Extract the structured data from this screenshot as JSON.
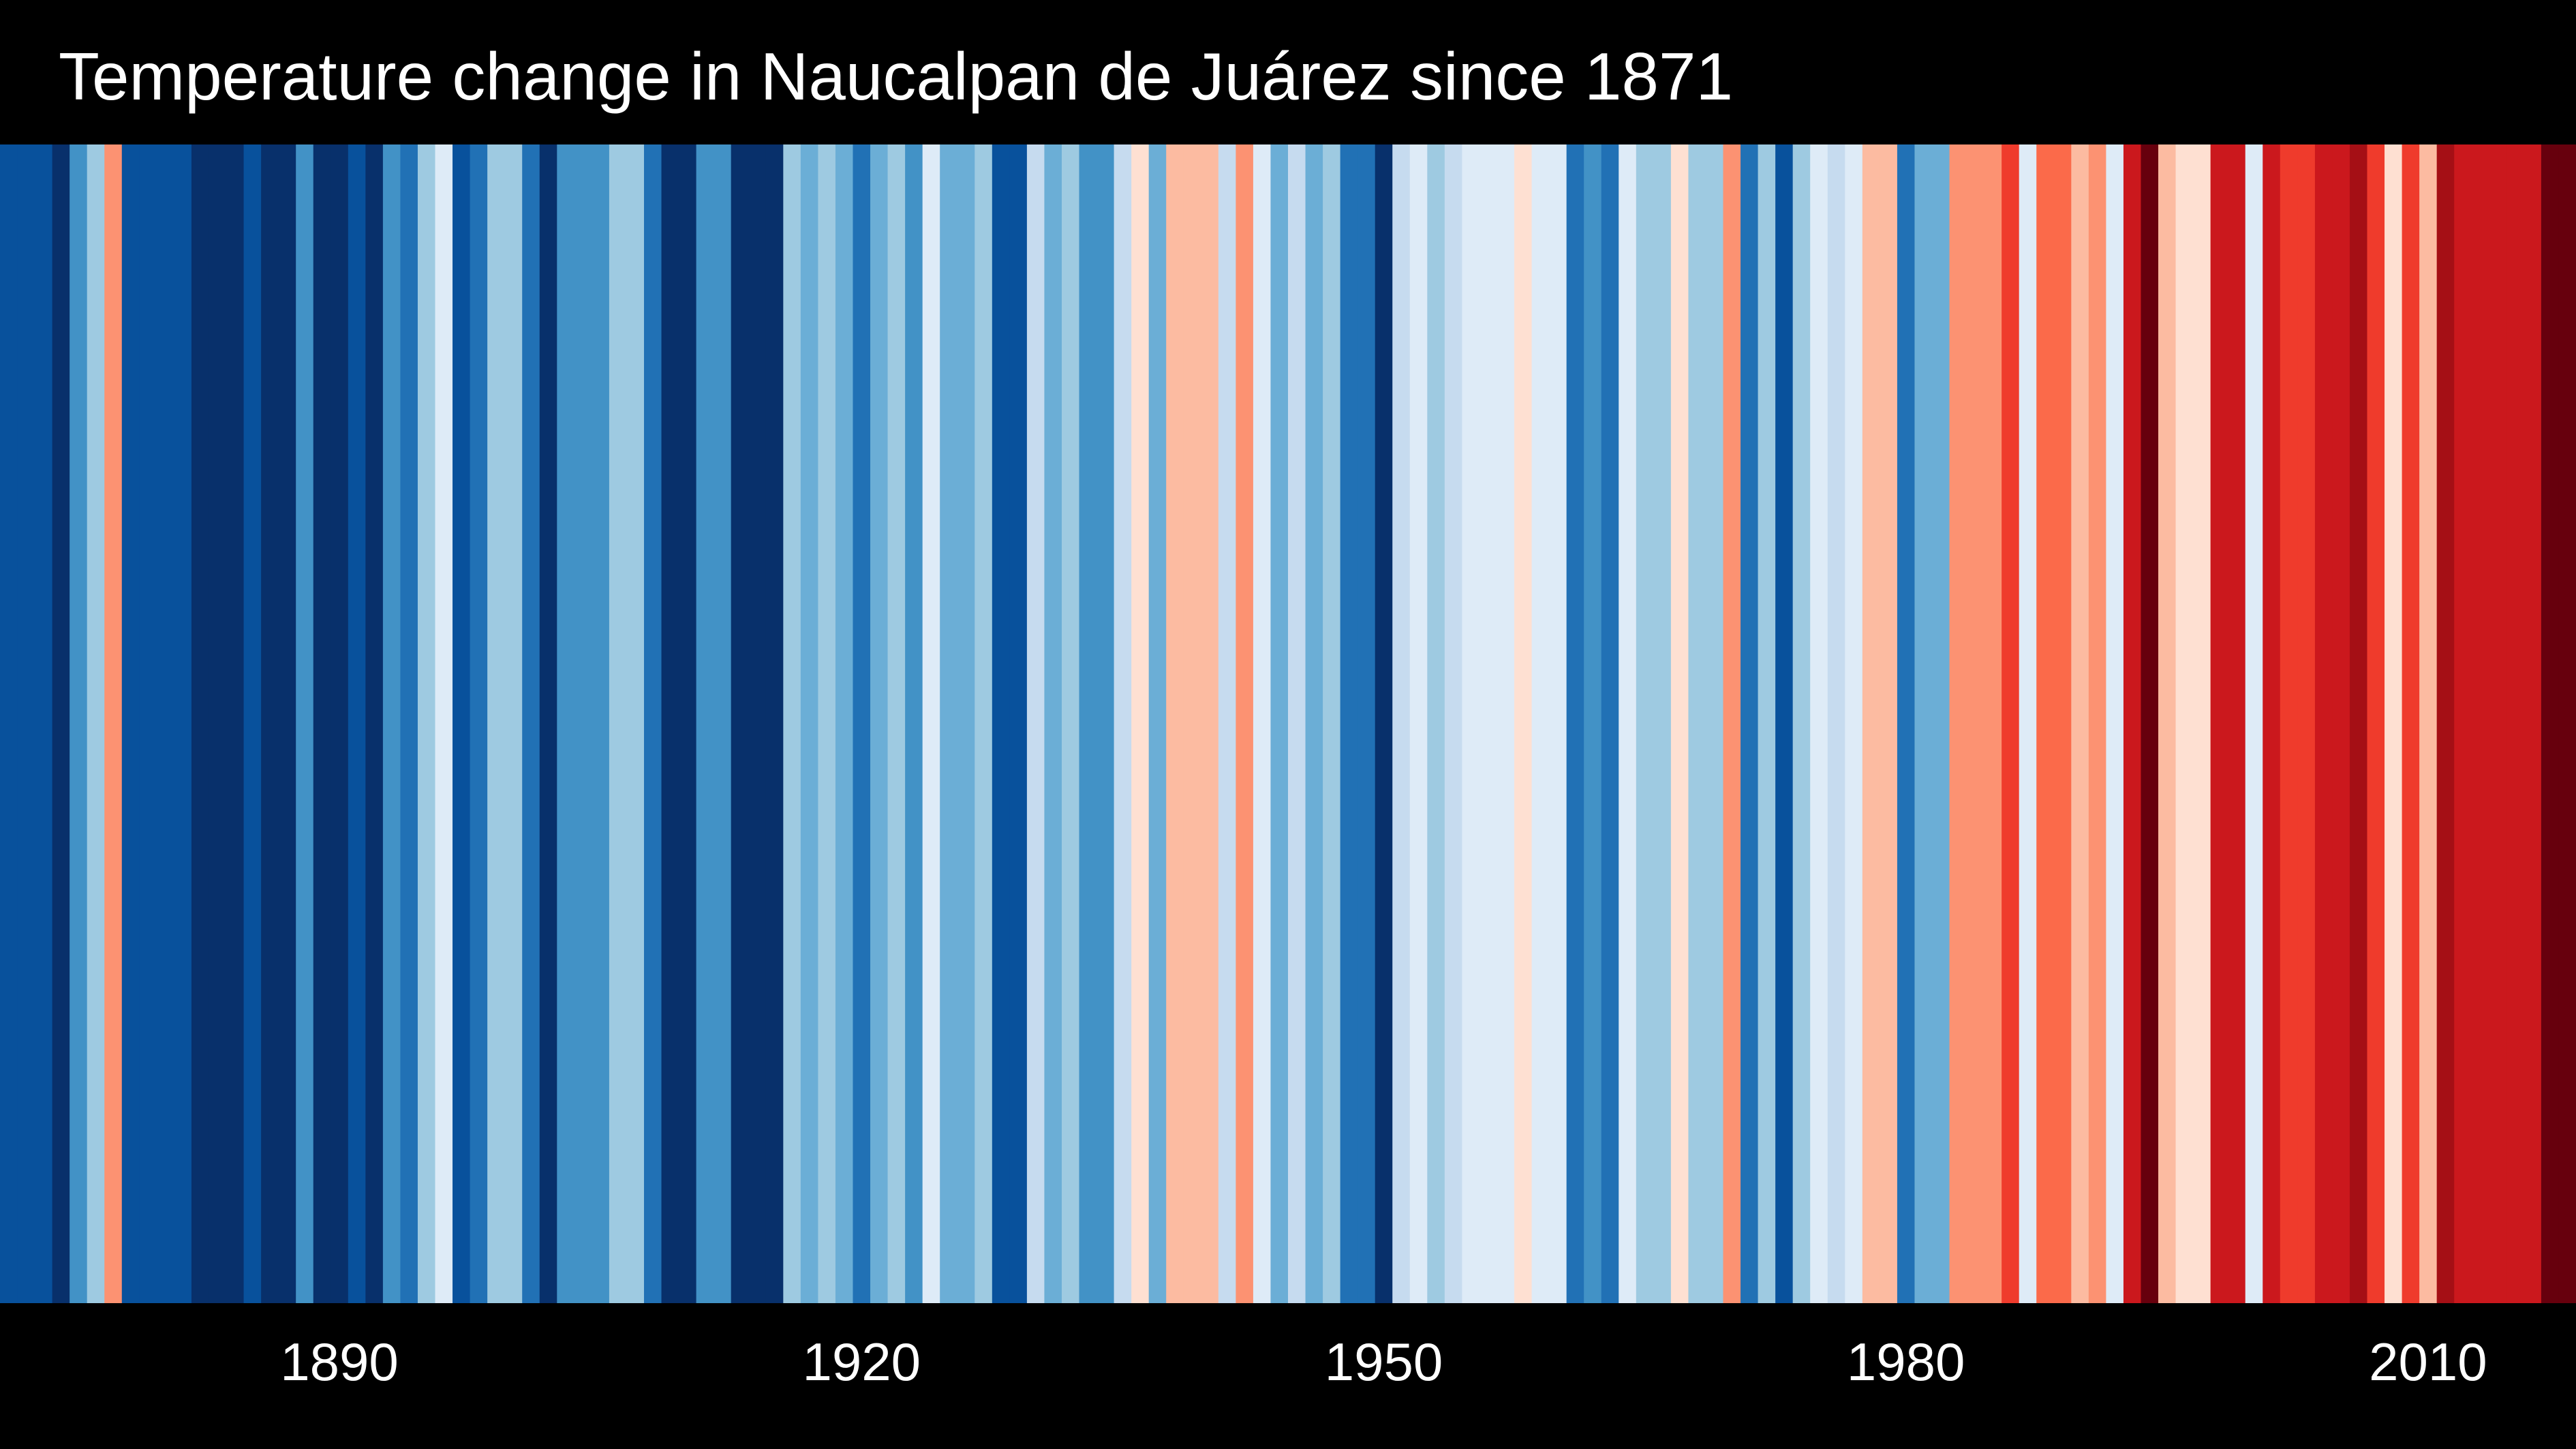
{
  "chart_data": {
    "type": "heatmap",
    "title": "Temperature change in Naucalpan de Juárez since 1871",
    "x_start_year": 1871,
    "x_end_year": 2018,
    "value_scale": "anomaly class from -8 (coldest, dark blue) to +8 (warmest, dark red); 0 is the transition between light blue and light red",
    "xticks": [
      {
        "year": 1890,
        "label": "1890"
      },
      {
        "year": 1920,
        "label": "1920"
      },
      {
        "year": 1950,
        "label": "1950"
      },
      {
        "year": 1980,
        "label": "1980"
      },
      {
        "year": 2010,
        "label": "2010"
      }
    ],
    "palette": {
      "-8": "#08306b",
      "-7": "#08519c",
      "-6": "#2171b5",
      "-5": "#4292c6",
      "-4": "#6baed6",
      "-3": "#9ecae1",
      "-2": "#c6dbef",
      "-1": "#deebf7",
      "1": "#fee0d2",
      "2": "#fcbba1",
      "3": "#fc9272",
      "4": "#fb6a4a",
      "5": "#ef3b2c",
      "6": "#cb181d",
      "7": "#a50f15",
      "8": "#67000d"
    },
    "values": [
      -7,
      -7,
      -7,
      -8,
      -5,
      -3,
      3,
      -7,
      -7,
      -7,
      -7,
      -8,
      -8,
      -8,
      -7,
      -8,
      -8,
      -5,
      -8,
      -8,
      -7,
      -8,
      -5,
      -6,
      -3,
      -1,
      -7,
      -6,
      -3,
      -3,
      -6,
      -8,
      -5,
      -5,
      -5,
      -3,
      -3,
      -6,
      -8,
      -8,
      -5,
      -5,
      -8,
      -8,
      -8,
      -3,
      -4,
      -3,
      -4,
      -6,
      -4,
      -3,
      -5,
      -1,
      -4,
      -4,
      -3,
      -7,
      -7,
      -2,
      -4,
      -3,
      -5,
      -5,
      -2,
      1,
      -4,
      2,
      2,
      2,
      -2,
      3,
      -1,
      -4,
      -2,
      -4,
      -3,
      -6,
      -6,
      -8,
      -2,
      -1,
      -3,
      -2,
      -1,
      -1,
      -1,
      1,
      -1,
      -1,
      -6,
      -5,
      -6,
      -1,
      -3,
      -3,
      1,
      -3,
      -3,
      3,
      -6,
      -3,
      -7,
      -3,
      -1,
      -2,
      -1,
      2,
      2,
      -6,
      -4,
      -4,
      3,
      3,
      3,
      5,
      -1,
      4,
      4,
      2,
      3,
      -1,
      6,
      8,
      2,
      1,
      1,
      6,
      6,
      -1,
      6,
      5,
      5,
      6,
      6,
      7,
      5,
      1,
      5,
      2,
      7,
      6,
      6,
      6,
      6,
      6,
      8,
      8
    ]
  }
}
